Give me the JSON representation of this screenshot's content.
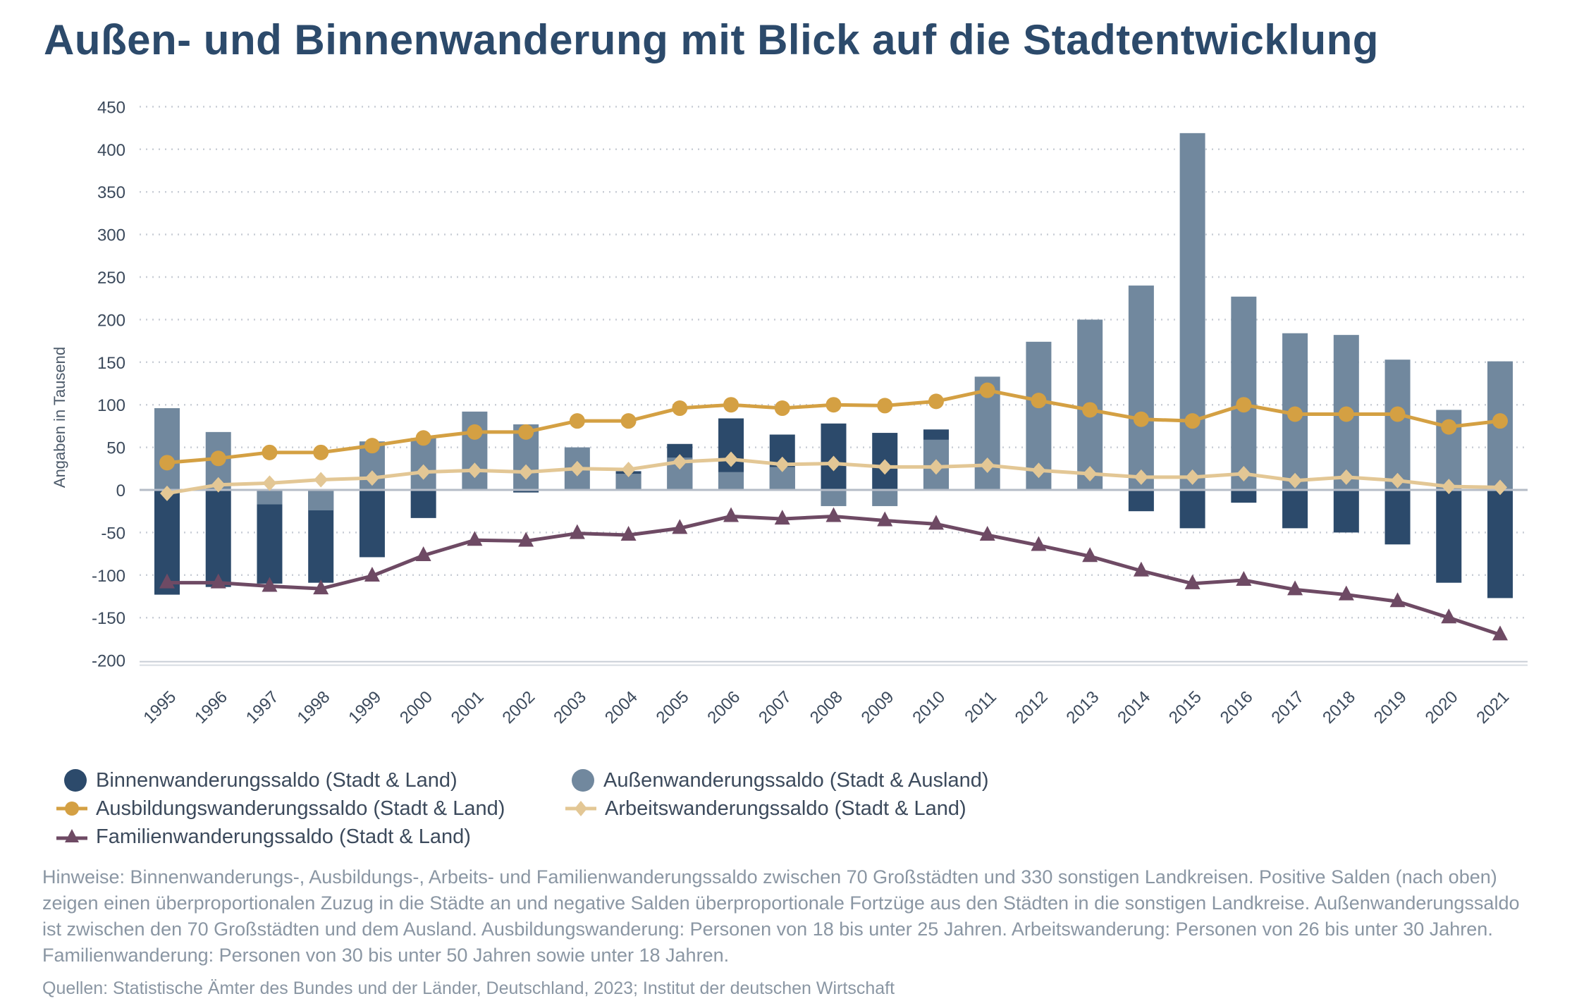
{
  "title": "Außen- und Binnenwanderung mit Blick auf die Stadtentwicklung",
  "chart_data": {
    "type": "bar+line",
    "ylabel": "Angaben in Tausend",
    "xlabel": "",
    "ylim": [
      -200,
      450
    ],
    "yticks": [
      450,
      400,
      350,
      300,
      250,
      200,
      150,
      100,
      50,
      0,
      -50,
      -100,
      -150,
      -200
    ],
    "grid": true,
    "legend_position": "bottom",
    "categories": [
      "1995",
      "1996",
      "1997",
      "1998",
      "1999",
      "2000",
      "2001",
      "2002",
      "2003",
      "2004",
      "2005",
      "2006",
      "2007",
      "2008",
      "2009",
      "2010",
      "2011",
      "2012",
      "2013",
      "2014",
      "2015",
      "2016",
      "2017",
      "2018",
      "2019",
      "2020",
      "2021"
    ],
    "series": [
      {
        "name": "Binnenwanderungssaldo (Stadt & Land)",
        "kind": "bar",
        "color": "#2c4a6b",
        "marker": "circle",
        "values": [
          -123,
          -114,
          -110,
          -109,
          -79,
          -33,
          null,
          -3,
          null,
          22,
          54,
          84,
          65,
          78,
          67,
          71,
          null,
          null,
          null,
          -25,
          -45,
          -15,
          -45,
          -50,
          -64,
          -109,
          -127
        ]
      },
      {
        "name": "Außenwanderungssaldo (Stadt & Ausland)",
        "kind": "bar",
        "color": "#71889e",
        "marker": "circle",
        "values": [
          96,
          68,
          -17,
          -24,
          57,
          61,
          92,
          77,
          50,
          19,
          38,
          21,
          27,
          -19,
          -19,
          59,
          133,
          174,
          200,
          240,
          419,
          227,
          184,
          182,
          153,
          94,
          151
        ]
      },
      {
        "name": "Ausbildungswanderungssaldo (Stadt & Land)",
        "kind": "line",
        "color": "#d4a043",
        "marker": "circle",
        "values": [
          32,
          37,
          44,
          44,
          52,
          61,
          68,
          68,
          81,
          81,
          96,
          100,
          96,
          100,
          99,
          104,
          117,
          105,
          94,
          83,
          81,
          100,
          89,
          89,
          89,
          74,
          81
        ]
      },
      {
        "name": "Arbeitswanderungssaldo (Stadt & Land)",
        "kind": "line",
        "color": "#e3c795",
        "marker": "diamond",
        "values": [
          -4,
          6,
          8,
          12,
          14,
          21,
          23,
          21,
          25,
          24,
          33,
          36,
          30,
          31,
          27,
          27,
          29,
          23,
          19,
          15,
          15,
          19,
          11,
          15,
          11,
          4,
          3
        ]
      },
      {
        "name": "Familienwanderungssaldo (Stadt & Land)",
        "kind": "line",
        "color": "#6e4a64",
        "marker": "triangle",
        "values": [
          -109,
          -109,
          -113,
          -116,
          -101,
          -77,
          -59,
          -60,
          -51,
          -53,
          -45,
          -31,
          -34,
          -31,
          -36,
          -40,
          -53,
          -65,
          -78,
          -95,
          -110,
          -106,
          -117,
          -123,
          -131,
          -150,
          -170
        ]
      }
    ]
  },
  "notes": "Hinweise: Binnenwanderungs-, Ausbildungs-, Arbeits- und Familienwanderungssaldo zwischen 70 Großstädten und 330 sonstigen Landkreisen. Positive Salden (nach oben) zeigen einen überproportionalen Zuzug in die Städte an und negative Salden überproportionale Fortzüge aus den Städten in die sonstigen Landkreise. Außenwanderungssaldo ist zwischen den 70 Großstädten und dem Ausland. Ausbildungswanderung: Personen von 18 bis unter 25 Jahren. Arbeitswanderung: Personen von 26 bis unter 30 Jahren. Familienwanderung: Personen von 30 bis unter 50 Jahren sowie unter 18 Jahren.",
  "sources": "Quellen: Statistische Ämter des Bundes und der Länder, Deutschland, 2023; Institut der deutschen Wirtschaft"
}
